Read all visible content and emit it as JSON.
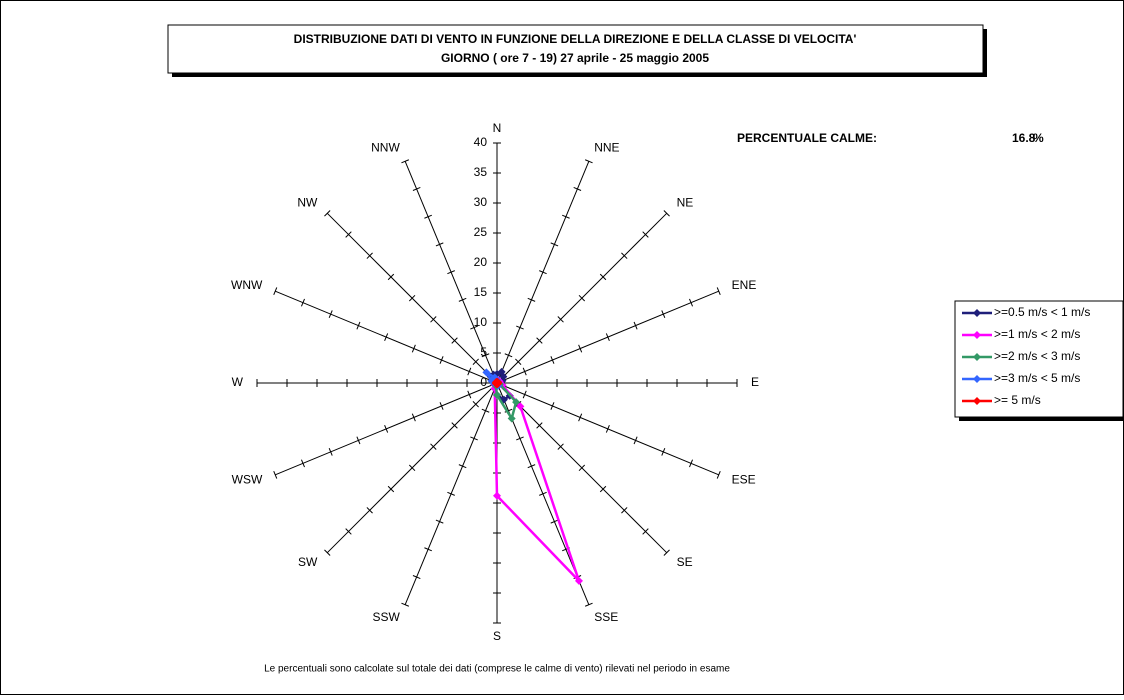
{
  "chart_data": {
    "type": "radar",
    "title": "DISTRIBUZIONE DATI DI VENTO IN FUNZIONE DELLA DIREZIONE E DELLA CLASSE DI VELOCITA'",
    "subtitle": "GIORNO ( ore 7 - 19)  27 aprile - 25 maggio 2005",
    "calms": {
      "label": "PERCENTUALE CALME:",
      "value": 16.8,
      "unit": "%"
    },
    "note": "Le percentuali sono calcolate sul totale dei dati (comprese le calme di vento) rilevati nel periodo in esame",
    "categories": [
      "N",
      "NNE",
      "NE",
      "ENE",
      "E",
      "ESE",
      "SE",
      "SSE",
      "S",
      "SSW",
      "SW",
      "WSW",
      "W",
      "WNW",
      "NW",
      "NNW"
    ],
    "rlim": [
      0,
      40
    ],
    "rticks": [
      0,
      5,
      10,
      15,
      20,
      25,
      30,
      35,
      40
    ],
    "series": [
      {
        "name": ">=0.5 m/s < 1 m/s",
        "color": "#1f1f7a",
        "values": [
          1.5,
          2,
          1.5,
          1,
          0.5,
          1,
          3,
          3,
          2,
          1,
          0.5,
          0.5,
          0.5,
          1,
          1.5,
          1.5
        ]
      },
      {
        "name": ">=1 m/s < 2 m/s",
        "color": "#ff00ff",
        "values": [
          0.5,
          0.5,
          0.5,
          0.5,
          0.5,
          1,
          5.5,
          35.7,
          18.8,
          1,
          0.5,
          0.3,
          0.3,
          0.3,
          0.5,
          0.5
        ]
      },
      {
        "name": ">=2 m/s < 3 m/s",
        "color": "#339966",
        "values": [
          0.3,
          0.3,
          0.2,
          0.2,
          0.2,
          0.5,
          4.5,
          6.4,
          2,
          0.5,
          0.2,
          0.2,
          0.2,
          0.2,
          0.2,
          0.3
        ]
      },
      {
        "name": ">=3 m/s < 5 m/s",
        "color": "#3366ff",
        "values": [
          0.5,
          0.2,
          0.2,
          0.2,
          0.2,
          0.2,
          0.2,
          0.5,
          0.2,
          0.2,
          0.2,
          0.2,
          0.5,
          1,
          2.5,
          1
        ]
      },
      {
        "name": ">= 5 m/s",
        "color": "#ff0000",
        "values": [
          0.2,
          0.2,
          0.2,
          0.2,
          0.2,
          0.2,
          0.2,
          0.2,
          0.2,
          0.2,
          0.2,
          0.2,
          0.2,
          0.2,
          0.2,
          0.2
        ]
      }
    ]
  }
}
